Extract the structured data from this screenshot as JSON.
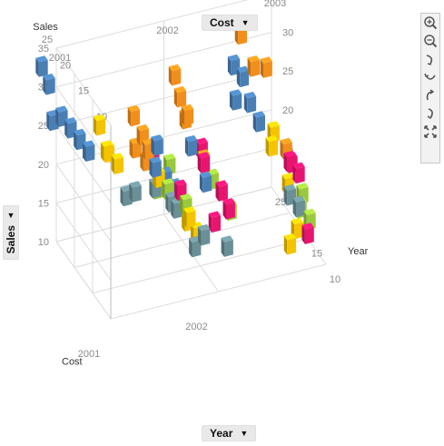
{
  "controls": {
    "top_dropdown": "Cost",
    "bottom_dropdown": "Year",
    "left_dropdown": "Sales",
    "toolbar": [
      "zoom-in-icon",
      "zoom-out-icon",
      "rotate-left-icon",
      "rotate-right-icon",
      "tilt-up-icon",
      "tilt-down-icon",
      "fit-icon"
    ]
  },
  "chart_data": {
    "type": "scatter",
    "subtype": "3d-cubes",
    "axes": {
      "year": {
        "label": "Year",
        "range": [
          2001,
          2003
        ],
        "ticks": [
          "2001",
          "2002",
          "2003"
        ]
      },
      "cost": {
        "label": "Cost",
        "range": [
          10,
          35
        ],
        "ticks": [
          "10",
          "15",
          "20",
          "25",
          "30",
          "35"
        ]
      },
      "sales": {
        "label": "Sales",
        "range": [
          10,
          35
        ],
        "ticks": [
          "10",
          "15",
          "20",
          "25",
          "30",
          "35"
        ]
      }
    },
    "tick_labels": {
      "sales_left": [
        "35",
        "30",
        "25",
        "20",
        "15",
        "10"
      ],
      "sales_right": [
        "35",
        "30",
        "25",
        "20",
        "15",
        "10"
      ],
      "cost_top": [
        "25",
        "20",
        "15",
        "10"
      ],
      "cost_right": [
        "10",
        "15",
        "20",
        "25"
      ],
      "year_top": [
        "2001",
        "2002",
        "2003"
      ],
      "year_bottom": [
        "2001",
        "2002"
      ]
    },
    "colors": {
      "blue": "#4a7fb5",
      "orange": "#f28e1c",
      "yellow": "#f5c400",
      "green": "#9ac93c",
      "teal": "#6a8f97",
      "pink": "#e8156f"
    },
    "points": [
      {
        "year": 2001.0,
        "cost": 29,
        "sales": 30,
        "c": "blue"
      },
      {
        "year": 2001.0,
        "cost": 27,
        "sales": 29,
        "c": "blue"
      },
      {
        "year": 2001.05,
        "cost": 25,
        "sales": 26,
        "c": "blue"
      },
      {
        "year": 2001.1,
        "cost": 24,
        "sales": 25,
        "c": "blue"
      },
      {
        "year": 2001.15,
        "cost": 23,
        "sales": 24,
        "c": "blue"
      },
      {
        "year": 2001.2,
        "cost": 22,
        "sales": 23,
        "c": "blue"
      },
      {
        "year": 2001.0,
        "cost": 26,
        "sales": 25,
        "c": "blue"
      },
      {
        "year": 2001.3,
        "cost": 22,
        "sales": 26,
        "c": "yellow"
      },
      {
        "year": 2001.35,
        "cost": 21,
        "sales": 23,
        "c": "yellow"
      },
      {
        "year": 2001.4,
        "cost": 20,
        "sales": 22,
        "c": "yellow"
      },
      {
        "year": 2001.3,
        "cost": 20,
        "sales": 24,
        "c": "yellow"
      },
      {
        "year": 2001.45,
        "cost": 17,
        "sales": 30,
        "c": "orange"
      },
      {
        "year": 2001.5,
        "cost": 16,
        "sales": 28,
        "c": "orange"
      },
      {
        "year": 2001.55,
        "cost": 16,
        "sales": 26,
        "c": "orange"
      },
      {
        "year": 2001.5,
        "cost": 18,
        "sales": 25,
        "c": "orange"
      },
      {
        "year": 2001.6,
        "cost": 15,
        "sales": 27,
        "c": "blue"
      },
      {
        "year": 2001.55,
        "cost": 14,
        "sales": 25,
        "c": "blue"
      },
      {
        "year": 2001.6,
        "cost": 18,
        "sales": 23,
        "c": "orange"
      },
      {
        "year": 2001.65,
        "cost": 16,
        "sales": 22,
        "c": "yellow"
      },
      {
        "year": 2001.7,
        "cost": 15,
        "sales": 21,
        "c": "green"
      },
      {
        "year": 2001.7,
        "cost": 14,
        "sales": 20,
        "c": "teal"
      },
      {
        "year": 2001.75,
        "cost": 14,
        "sales": 19,
        "c": "teal"
      },
      {
        "year": 2001.65,
        "cost": 17,
        "sales": 20,
        "c": "teal"
      },
      {
        "year": 2001.8,
        "cost": 13,
        "sales": 20,
        "c": "green"
      },
      {
        "year": 2001.75,
        "cost": 13,
        "sales": 22,
        "c": "pink"
      },
      {
        "year": 2001.8,
        "cost": 12,
        "sales": 19,
        "c": "yellow"
      },
      {
        "year": 2001.85,
        "cost": 14,
        "sales": 17,
        "c": "yellow"
      },
      {
        "year": 2001.9,
        "cost": 13,
        "sales": 16,
        "c": "yellow"
      },
      {
        "year": 2001.85,
        "cost": 12,
        "sales": 15,
        "c": "teal"
      },
      {
        "year": 2001.9,
        "cost": 11,
        "sales": 17,
        "c": "teal"
      },
      {
        "year": 2001.6,
        "cost": 21,
        "sales": 17,
        "c": "teal"
      },
      {
        "year": 2001.55,
        "cost": 22,
        "sales": 16,
        "c": "teal"
      },
      {
        "year": 2001.7,
        "cost": 18,
        "sales": 19,
        "c": "green"
      },
      {
        "year": 2001.75,
        "cost": 17,
        "sales": 21,
        "c": "blue"
      },
      {
        "year": 2001.8,
        "cost": 16,
        "sales": 20,
        "c": "blue"
      },
      {
        "year": 2001.85,
        "cost": 19,
        "sales": 21,
        "c": "green"
      },
      {
        "year": 2001.7,
        "cost": 19,
        "sales": 23,
        "c": "pink"
      },
      {
        "year": 2002.0,
        "cost": 22,
        "sales": 30,
        "c": "orange"
      },
      {
        "year": 2002.05,
        "cost": 22,
        "sales": 27,
        "c": "orange"
      },
      {
        "year": 2002.05,
        "cost": 20,
        "sales": 26,
        "c": "orange"
      },
      {
        "year": 2002.1,
        "cost": 22,
        "sales": 24,
        "c": "orange"
      },
      {
        "year": 2002.15,
        "cost": 19,
        "sales": 22,
        "c": "pink"
      },
      {
        "year": 2002.1,
        "cost": 17,
        "sales": 22,
        "c": "orange"
      },
      {
        "year": 2002.15,
        "cost": 16,
        "sales": 20,
        "c": "green"
      },
      {
        "year": 2002.2,
        "cost": 15,
        "sales": 19,
        "c": "pink"
      },
      {
        "year": 2002.2,
        "cost": 13,
        "sales": 18,
        "c": "pink"
      },
      {
        "year": 2002.1,
        "cost": 14,
        "sales": 16,
        "c": "pink"
      },
      {
        "year": 2002.15,
        "cost": 12,
        "sales": 14,
        "c": "teal"
      },
      {
        "year": 2002.25,
        "cost": 14,
        "sales": 17,
        "c": "green"
      },
      {
        "year": 2002.0,
        "cost": 14,
        "sales": 24,
        "c": "pink"
      },
      {
        "year": 2001.95,
        "cost": 16,
        "sales": 25,
        "c": "blue"
      },
      {
        "year": 2001.95,
        "cost": 12,
        "sales": 23,
        "c": "blue"
      },
      {
        "year": 2002.75,
        "cost": 26,
        "sales": 30,
        "c": "orange"
      },
      {
        "year": 2002.8,
        "cost": 24,
        "sales": 27,
        "c": "orange"
      },
      {
        "year": 2002.85,
        "cost": 22,
        "sales": 28,
        "c": "orange"
      },
      {
        "year": 2002.7,
        "cost": 24,
        "sales": 26,
        "c": "blue"
      },
      {
        "year": 2002.65,
        "cost": 25,
        "sales": 27,
        "c": "blue"
      },
      {
        "year": 2002.7,
        "cost": 22,
        "sales": 24,
        "c": "blue"
      },
      {
        "year": 2002.6,
        "cost": 23,
        "sales": 24,
        "c": "blue"
      },
      {
        "year": 2002.75,
        "cost": 21,
        "sales": 22,
        "c": "blue"
      },
      {
        "year": 2002.85,
        "cost": 20,
        "sales": 21,
        "c": "yellow"
      },
      {
        "year": 2002.8,
        "cost": 19,
        "sales": 20,
        "c": "yellow"
      },
      {
        "year": 2002.9,
        "cost": 18,
        "sales": 20,
        "c": "orange"
      },
      {
        "year": 2002.9,
        "cost": 17,
        "sales": 19,
        "c": "pink"
      },
      {
        "year": 2002.95,
        "cost": 16,
        "sales": 18,
        "c": "pink"
      },
      {
        "year": 2002.85,
        "cost": 16,
        "sales": 17,
        "c": "yellow"
      },
      {
        "year": 2002.95,
        "cost": 15,
        "sales": 16,
        "c": "green"
      },
      {
        "year": 2002.9,
        "cost": 14,
        "sales": 15,
        "c": "green"
      },
      {
        "year": 2002.95,
        "cost": 13,
        "sales": 14,
        "c": "green"
      },
      {
        "year": 2002.85,
        "cost": 13,
        "sales": 16,
        "c": "teal"
      },
      {
        "year": 2002.8,
        "cost": 14,
        "sales": 17,
        "c": "teal"
      },
      {
        "year": 2002.9,
        "cost": 12,
        "sales": 13,
        "c": "pink"
      },
      {
        "year": 2002.8,
        "cost": 12,
        "sales": 14,
        "c": "yellow"
      },
      {
        "year": 2002.7,
        "cost": 11,
        "sales": 13,
        "c": "yellow"
      },
      {
        "year": 2002.95,
        "cost": 18,
        "sales": 18,
        "c": "pink"
      }
    ]
  }
}
